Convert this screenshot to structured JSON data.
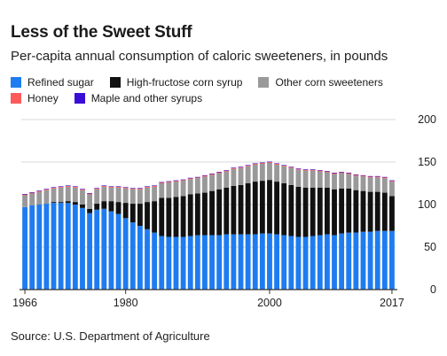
{
  "title": "Less of the Sweet Stuff",
  "subtitle": "Per-capita annual consumption of caloric sweeteners, in pounds",
  "source": "Source: U.S. Department of Agriculture",
  "chart_data": {
    "type": "bar",
    "stacked": true,
    "title": "Less of the Sweet Stuff",
    "subtitle": "Per-capita annual consumption of caloric sweeteners, in pounds",
    "xlabel": "",
    "ylabel": "",
    "ylim": [
      0,
      200
    ],
    "y_ticks": [
      0,
      50,
      100,
      150,
      200
    ],
    "x_tick_labels": [
      "1966",
      "1980",
      "2000",
      "2017"
    ],
    "grid": true,
    "legend_position": "top-left",
    "categories": [
      1966,
      1967,
      1968,
      1969,
      1970,
      1971,
      1972,
      1973,
      1974,
      1975,
      1976,
      1977,
      1978,
      1979,
      1980,
      1981,
      1982,
      1983,
      1984,
      1985,
      1986,
      1987,
      1988,
      1989,
      1990,
      1991,
      1992,
      1993,
      1994,
      1995,
      1996,
      1997,
      1998,
      1999,
      2000,
      2001,
      2002,
      2003,
      2004,
      2005,
      2006,
      2007,
      2008,
      2009,
      2010,
      2011,
      2012,
      2013,
      2014,
      2015,
      2016,
      2017
    ],
    "series": [
      {
        "name": "Refined sugar",
        "color": "#1f7cf0",
        "values": [
          97,
          99,
          100,
          101,
          102,
          102,
          102,
          100,
          96,
          90,
          94,
          95,
          92,
          89,
          84,
          79,
          75,
          71,
          67,
          63,
          62,
          62,
          62,
          63,
          64,
          64,
          64,
          64,
          65,
          65,
          65,
          65,
          65,
          66,
          66,
          65,
          64,
          63,
          62,
          62,
          63,
          64,
          65,
          64,
          66,
          67,
          67,
          68,
          68,
          69,
          69,
          69
        ]
      },
      {
        "name": "High-fructose corn syrup",
        "color": "#111111",
        "values": [
          0,
          0,
          0,
          0,
          1,
          1,
          2,
          3,
          4,
          5,
          7,
          9,
          12,
          14,
          18,
          22,
          26,
          32,
          37,
          45,
          46,
          47,
          48,
          49,
          49,
          50,
          52,
          54,
          55,
          57,
          58,
          60,
          62,
          62,
          63,
          62,
          61,
          60,
          59,
          58,
          57,
          56,
          55,
          54,
          53,
          52,
          50,
          48,
          47,
          46,
          45,
          41
        ]
      },
      {
        "name": "Other corn sweeteners",
        "color": "#999999",
        "values": [
          14,
          14,
          15,
          16,
          16,
          17,
          17,
          17,
          17,
          17,
          17,
          17,
          16,
          17,
          17,
          17,
          17,
          17,
          17,
          17,
          18,
          18,
          18,
          18,
          18,
          19,
          19,
          19,
          19,
          20,
          20,
          20,
          20,
          20,
          20,
          20,
          20,
          20,
          20,
          20,
          20,
          19,
          18,
          18,
          18,
          17,
          17,
          17,
          17,
          17,
          17,
          17
        ]
      },
      {
        "name": "Honey",
        "color": "#ff5a5a",
        "values": [
          1,
          1,
          1,
          1,
          1,
          1,
          1,
          1,
          1,
          1,
          1,
          1,
          1,
          1,
          1,
          1,
          1,
          1,
          1,
          1,
          1,
          1,
          1,
          1,
          1,
          1,
          1,
          1,
          1,
          1,
          1,
          1,
          1,
          1,
          1,
          1,
          1,
          1,
          1,
          1,
          1,
          1,
          1,
          1,
          1,
          1,
          1,
          1,
          1,
          1,
          1,
          1
        ]
      },
      {
        "name": "Maple and other syrups",
        "color": "#3a0ed6",
        "values": [
          0.5,
          0.5,
          0.5,
          0.5,
          0.5,
          0.5,
          0.5,
          0.5,
          0.5,
          0.5,
          0.5,
          0.5,
          0.5,
          0.5,
          0.5,
          0.5,
          0.5,
          0.5,
          0.5,
          0.5,
          0.5,
          0.5,
          0.5,
          0.5,
          0.5,
          0.5,
          0.5,
          0.5,
          0.5,
          0.5,
          0.5,
          0.5,
          0.5,
          0.5,
          0.5,
          0.5,
          0.5,
          0.5,
          0.5,
          0.5,
          0.5,
          0.5,
          0.5,
          0.5,
          0.5,
          0.5,
          0.5,
          0.5,
          0.5,
          0.5,
          0.5,
          0.5
        ]
      }
    ]
  }
}
